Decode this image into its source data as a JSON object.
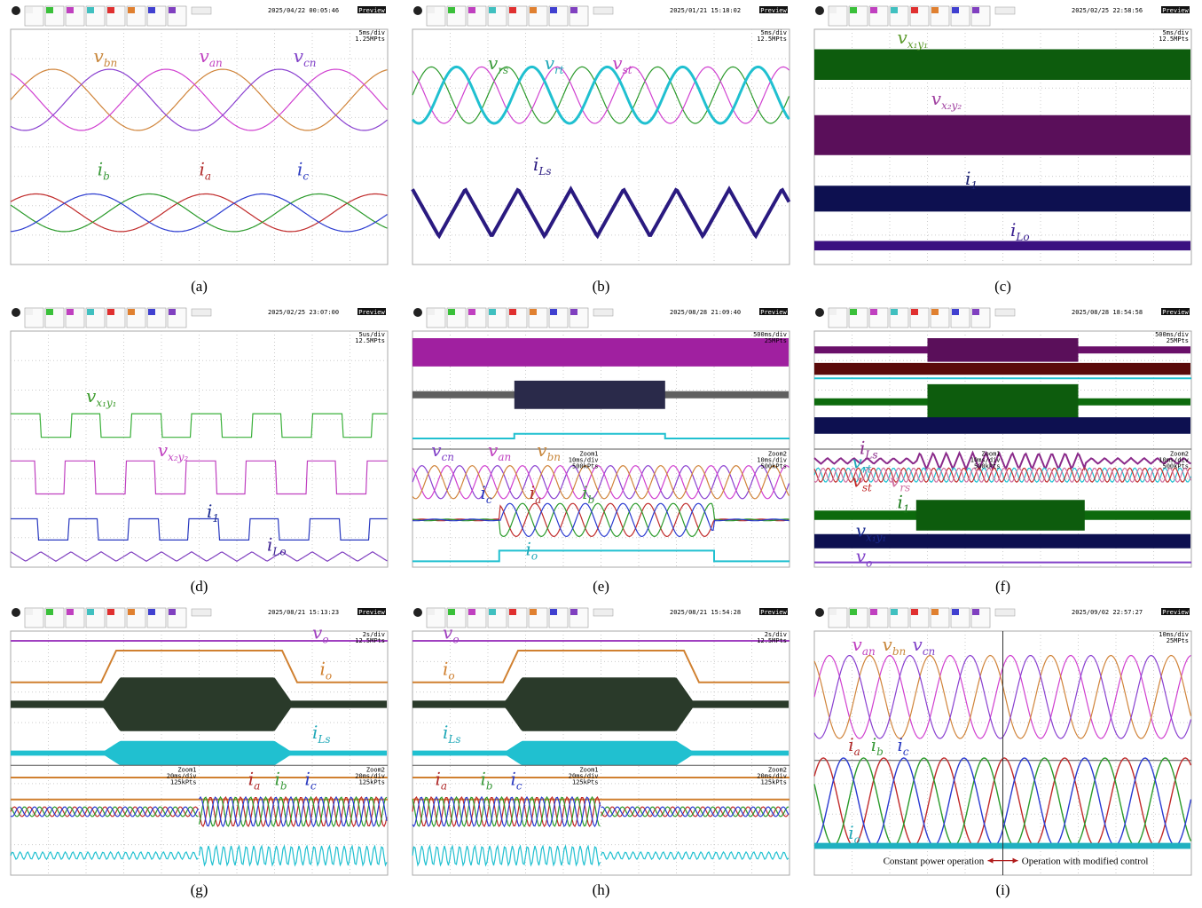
{
  "panels": [
    {
      "caption": "(a)",
      "timestamp": "2025/04/22 00:05:46",
      "timebase": "5ms/div",
      "points": "1.25MPts",
      "preview": "Preview",
      "labels": [
        {
          "base": "v",
          "sub": "bn",
          "color": "#c8863a"
        },
        {
          "base": "v",
          "sub": "an",
          "color": "#c040c0"
        },
        {
          "base": "v",
          "sub": "cn",
          "color": "#8040c8"
        },
        {
          "base": "i",
          "sub": "b",
          "color": "#3a9a3a"
        },
        {
          "base": "i",
          "sub": "a",
          "color": "#b02a2a"
        },
        {
          "base": "i",
          "sub": "c",
          "color": "#2a3ac0"
        }
      ]
    },
    {
      "caption": "(b)",
      "timestamp": "2025/01/21 15:18:02",
      "timebase": "5ms/div",
      "points": "12.5MPts",
      "preview": "Preview",
      "labels": [
        {
          "base": "v",
          "sub": "rs",
          "color": "#3a9a3a"
        },
        {
          "base": "v",
          "sub": "rt",
          "color": "#20a8b8"
        },
        {
          "base": "v",
          "sub": "st",
          "color": "#c040c0"
        },
        {
          "base": "i",
          "sub": "Ls",
          "color": "#2a1a80"
        }
      ]
    },
    {
      "caption": "(c)",
      "timestamp": "2025/02/25 22:58:56",
      "timebase": "5ms/div",
      "points": "12.5MPts",
      "preview": "Preview",
      "labels": [
        {
          "base": "v",
          "sub": "x₁y₁",
          "color": "#5a9a2a"
        },
        {
          "base": "v",
          "sub": "x₂y₂",
          "color": "#a040a0"
        },
        {
          "base": "i",
          "sub": "1",
          "color": "#1a2070"
        },
        {
          "base": "i",
          "sub": "Lo",
          "color": "#3a2090"
        }
      ]
    },
    {
      "caption": "(d)",
      "timestamp": "2025/02/25 23:07:00",
      "timebase": "5us/div",
      "points": "12.5MPts",
      "preview": "Preview",
      "labels": [
        {
          "base": "v",
          "sub": "x₁y₁",
          "color": "#3a9a2a"
        },
        {
          "base": "v",
          "sub": "x₂y₂",
          "color": "#c040c0"
        },
        {
          "base": "i",
          "sub": "1",
          "color": "#1a2a90"
        },
        {
          "base": "i",
          "sub": "Lo",
          "color": "#3a2090"
        }
      ]
    },
    {
      "caption": "(e)",
      "timestamp": "2025/08/28 21:09:40",
      "timebase": "500ms/div",
      "points": "25MPts",
      "preview": "Preview",
      "zooms": [
        {
          "name": "Zoom1",
          "timebase": "10ms/div",
          "points": "500kPts"
        },
        {
          "name": "Zoom2",
          "timebase": "10ms/div",
          "points": "500kPts"
        }
      ],
      "labels": [
        {
          "base": "v",
          "sub": "cn",
          "color": "#8040c8"
        },
        {
          "base": "v",
          "sub": "an",
          "color": "#c040c0"
        },
        {
          "base": "v",
          "sub": "bn",
          "color": "#c8863a"
        },
        {
          "base": "i",
          "sub": "c",
          "color": "#2a3ac0"
        },
        {
          "base": "i",
          "sub": "a",
          "color": "#b02a2a"
        },
        {
          "base": "i",
          "sub": "b",
          "color": "#3a9a3a"
        },
        {
          "base": "i",
          "sub": "o",
          "color": "#20a8b8"
        }
      ]
    },
    {
      "caption": "(f)",
      "timestamp": "2025/08/28 18:54:58",
      "timebase": "500ms/div",
      "points": "25MPts",
      "preview": "Preview",
      "zooms": [
        {
          "name": "Zoom1",
          "timebase": "10ms/div",
          "points": "500kPts"
        },
        {
          "name": "Zoom2",
          "timebase": "10ms/div",
          "points": "500kPts"
        }
      ],
      "labels": [
        {
          "base": "i",
          "sub": "Ls",
          "color": "#8a2a8a"
        },
        {
          "base": "v",
          "sub": "rt",
          "color": "#20a8b8"
        },
        {
          "base": "v",
          "sub": "st",
          "color": "#c02a2a"
        },
        {
          "base": "v",
          "sub": "rs",
          "color": "#d070a0"
        },
        {
          "base": "i",
          "sub": "1",
          "color": "#1a7a1a"
        },
        {
          "base": "v",
          "sub": "x₁y₁",
          "color": "#1a2a90"
        },
        {
          "base": "v",
          "sub": "o",
          "color": "#8040c8"
        }
      ]
    },
    {
      "caption": "(g)",
      "timestamp": "2025/08/21 15:13:23",
      "timebase": "2s/div",
      "points": "12.5MPts",
      "preview": "Preview",
      "zooms": [
        {
          "name": "Zoom1",
          "timebase": "20ms/div",
          "points": "125kPts"
        },
        {
          "name": "Zoom2",
          "timebase": "20ms/div",
          "points": "125kPts"
        }
      ],
      "labels": [
        {
          "base": "v",
          "sub": "o",
          "color": "#a040c0"
        },
        {
          "base": "i",
          "sub": "o",
          "color": "#d08030"
        },
        {
          "base": "i",
          "sub": "Ls",
          "color": "#20a8b8"
        },
        {
          "base": "i",
          "sub": "a",
          "color": "#b02a2a"
        },
        {
          "base": "i",
          "sub": "b",
          "color": "#3a9a3a"
        },
        {
          "base": "i",
          "sub": "c",
          "color": "#2a3ac0"
        }
      ]
    },
    {
      "caption": "(h)",
      "timestamp": "2025/08/21 15:54:28",
      "timebase": "2s/div",
      "points": "12.5MPts",
      "preview": "Preview",
      "zooms": [
        {
          "name": "Zoom1",
          "timebase": "20ms/div",
          "points": "125kPts"
        },
        {
          "name": "Zoom2",
          "timebase": "20ms/div",
          "points": "125kPts"
        }
      ],
      "labels": [
        {
          "base": "v",
          "sub": "o",
          "color": "#a040c0"
        },
        {
          "base": "i",
          "sub": "o",
          "color": "#d08030"
        },
        {
          "base": "i",
          "sub": "Ls",
          "color": "#20a8b8"
        },
        {
          "base": "i",
          "sub": "a",
          "color": "#b02a2a"
        },
        {
          "base": "i",
          "sub": "b",
          "color": "#3a9a3a"
        },
        {
          "base": "i",
          "sub": "c",
          "color": "#2a3ac0"
        }
      ]
    },
    {
      "caption": "(i)",
      "timestamp": "2025/09/02 22:57:27",
      "timebase": "10ms/div",
      "points": "25MPts",
      "preview": "Preview",
      "annotations": [
        "Constant power operation",
        "Operation with modified control"
      ],
      "labels": [
        {
          "base": "v",
          "sub": "an",
          "color": "#c040c0"
        },
        {
          "base": "v",
          "sub": "bn",
          "color": "#c8863a"
        },
        {
          "base": "v",
          "sub": "cn",
          "color": "#8040c8"
        },
        {
          "base": "i",
          "sub": "a",
          "color": "#b02a2a"
        },
        {
          "base": "i",
          "sub": "b",
          "color": "#3a9a3a"
        },
        {
          "base": "i",
          "sub": "c",
          "color": "#2a3ac0"
        },
        {
          "base": "i",
          "sub": "o",
          "color": "#20a8b8"
        }
      ]
    }
  ]
}
